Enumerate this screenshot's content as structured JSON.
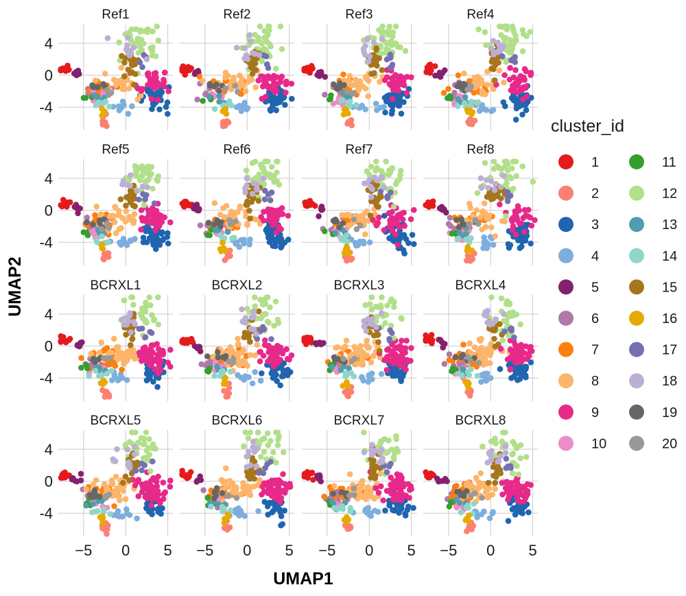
{
  "chart_data": {
    "type": "scatter",
    "layout": "faceted 4x4",
    "xlabel": "UMAP1",
    "ylabel": "UMAP2",
    "xlim": [
      -8,
      5.6
    ],
    "ylim": [
      -6.9,
      6.4
    ],
    "xticks": [
      -5,
      0,
      5
    ],
    "yticks": [
      4,
      0,
      -4
    ],
    "grid": true,
    "legend": {
      "title": "cluster_id",
      "placement": "right",
      "columns": 2,
      "entries": [
        {
          "id": "1",
          "color": "#E41A1C"
        },
        {
          "id": "2",
          "color": "#FB8072"
        },
        {
          "id": "3",
          "color": "#1F65B0"
        },
        {
          "id": "4",
          "color": "#7DAEDD"
        },
        {
          "id": "5",
          "color": "#85206F"
        },
        {
          "id": "6",
          "color": "#B07AA8"
        },
        {
          "id": "7",
          "color": "#FF7F0E"
        },
        {
          "id": "8",
          "color": "#FDB56B"
        },
        {
          "id": "9",
          "color": "#E7298A"
        },
        {
          "id": "10",
          "color": "#EB8DC8"
        },
        {
          "id": "11",
          "color": "#33A02C"
        },
        {
          "id": "12",
          "color": "#B2DF8A"
        },
        {
          "id": "13",
          "color": "#4F9DAE"
        },
        {
          "id": "14",
          "color": "#8FD6C9"
        },
        {
          "id": "15",
          "color": "#A6761D"
        },
        {
          "id": "16",
          "color": "#E6AB02"
        },
        {
          "id": "17",
          "color": "#7570B3"
        },
        {
          "id": "18",
          "color": "#BCAFD6"
        },
        {
          "id": "19",
          "color": "#666666"
        },
        {
          "id": "20",
          "color": "#999999"
        }
      ]
    },
    "panels": [
      {
        "title": "Ref1",
        "group": "Ref"
      },
      {
        "title": "Ref2",
        "group": "Ref"
      },
      {
        "title": "Ref3",
        "group": "Ref"
      },
      {
        "title": "Ref4",
        "group": "Ref"
      },
      {
        "title": "Ref5",
        "group": "Ref"
      },
      {
        "title": "Ref6",
        "group": "Ref"
      },
      {
        "title": "Ref7",
        "group": "Ref"
      },
      {
        "title": "Ref8",
        "group": "Ref"
      },
      {
        "title": "BCRXL1",
        "group": "BCRXL"
      },
      {
        "title": "BCRXL2",
        "group": "BCRXL"
      },
      {
        "title": "BCRXL3",
        "group": "BCRXL"
      },
      {
        "title": "BCRXL4",
        "group": "BCRXL"
      },
      {
        "title": "BCRXL5",
        "group": "BCRXL"
      },
      {
        "title": "BCRXL6",
        "group": "BCRXL"
      },
      {
        "title": "BCRXL7",
        "group": "BCRXL"
      },
      {
        "title": "BCRXL8",
        "group": "BCRXL"
      }
    ],
    "cluster_centers": [
      {
        "id": "1",
        "x": -7.3,
        "y": 0.8,
        "sx": 0.35,
        "sy": 0.25
      },
      {
        "id": "2",
        "x": -2.4,
        "y": -5.8,
        "sx": 0.25,
        "sy": 0.35
      },
      {
        "id": "3",
        "x": 3.3,
        "y": -3.2,
        "sx": 0.7,
        "sy": 0.8
      },
      {
        "id": "4",
        "x": -0.5,
        "y": -4.0,
        "sx": 0.8,
        "sy": 0.3
      },
      {
        "id": "5",
        "x": -5.8,
        "y": 0.2,
        "sx": 0.3,
        "sy": 0.3
      },
      {
        "id": "6",
        "x": -3.8,
        "y": -2.0,
        "sx": 0.8,
        "sy": 0.5
      },
      {
        "id": "7",
        "x": -2.5,
        "y": -1.5,
        "sx": 1.2,
        "sy": 0.6
      },
      {
        "id": "8",
        "x": -1.0,
        "y": -1.0,
        "sx": 1.3,
        "sy": 0.8
      },
      {
        "id": "9",
        "x": 3.2,
        "y": -1.0,
        "sx": 0.9,
        "sy": 0.8
      },
      {
        "id": "10",
        "x": -3.5,
        "y": -3.0,
        "sx": 0.6,
        "sy": 0.4
      },
      {
        "id": "11",
        "x": -4.6,
        "y": -2.7,
        "sx": 0.3,
        "sy": 0.3
      },
      {
        "id": "12",
        "x": 1.8,
        "y": 4.0,
        "sx": 1.1,
        "sy": 1.3
      },
      {
        "id": "13",
        "x": -3.2,
        "y": -2.8,
        "sx": 0.5,
        "sy": 0.3
      },
      {
        "id": "14",
        "x": -2.8,
        "y": -3.5,
        "sx": 0.6,
        "sy": 0.3
      },
      {
        "id": "15",
        "x": 0.6,
        "y": 1.8,
        "sx": 0.4,
        "sy": 1.0
      },
      {
        "id": "16",
        "x": -2.7,
        "y": -4.7,
        "sx": 0.2,
        "sy": 0.3
      },
      {
        "id": "17",
        "x": 2.2,
        "y": 1.8,
        "sx": 0.5,
        "sy": 0.6
      },
      {
        "id": "18",
        "x": 0.3,
        "y": 3.2,
        "sx": 0.8,
        "sy": 0.8
      },
      {
        "id": "19",
        "x": -3.5,
        "y": -1.5,
        "sx": 0.6,
        "sy": 0.3
      },
      {
        "id": "20",
        "x": -2.0,
        "y": -1.8,
        "sx": 0.5,
        "sy": 0.3
      }
    ]
  }
}
